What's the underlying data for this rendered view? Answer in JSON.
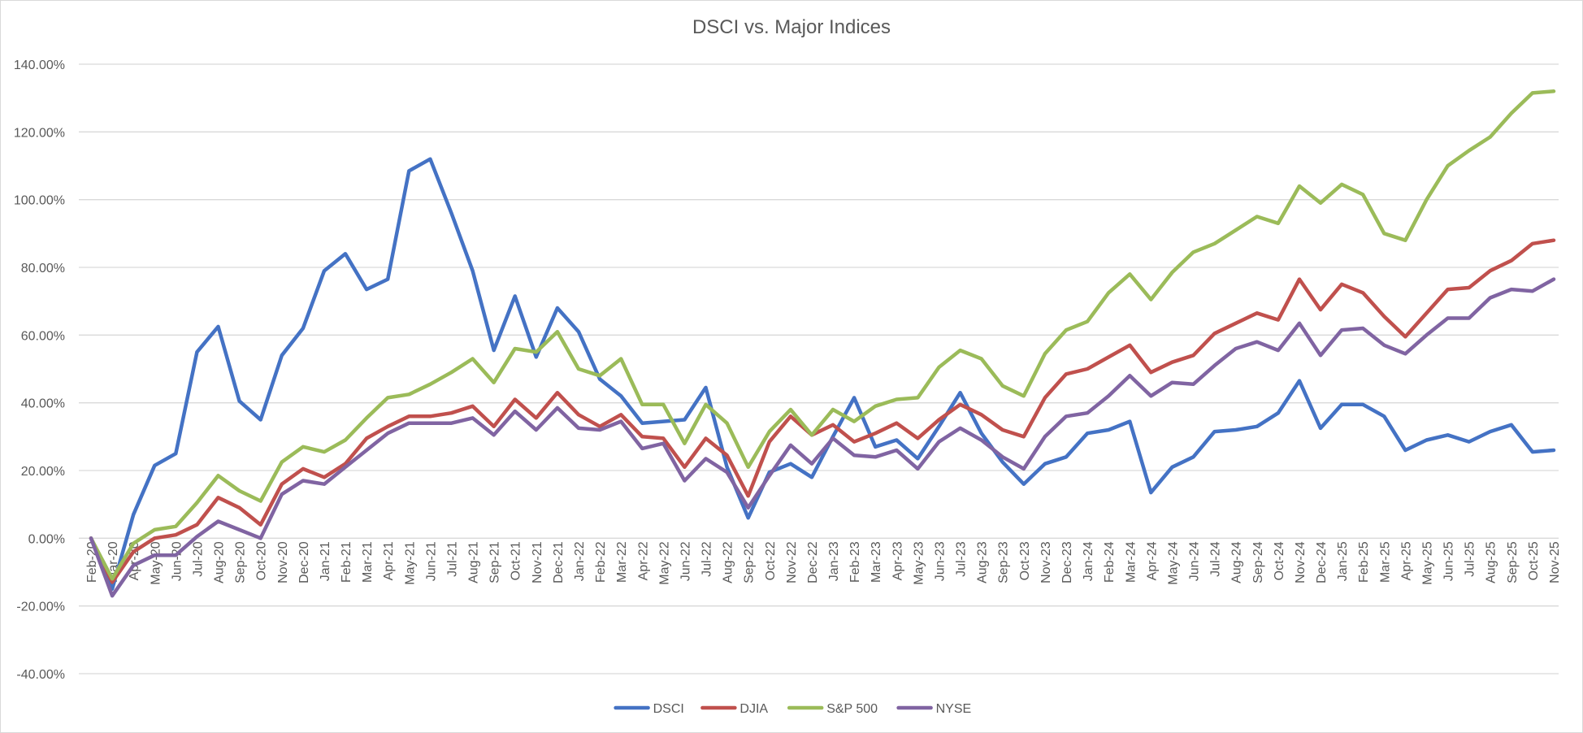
{
  "chart_data": {
    "type": "line",
    "title": "DSCI vs. Major Indices",
    "xlabel": "",
    "ylabel": "",
    "ylim": [
      -40,
      140
    ],
    "ytick_step": 20,
    "ytick_labels": [
      "-40.00%",
      "-20.00%",
      "0.00%",
      "20.00%",
      "40.00%",
      "60.00%",
      "80.00%",
      "100.00%",
      "120.00%",
      "140.00%"
    ],
    "grid": true,
    "legend_position": "bottom",
    "categories": [
      "Feb-20",
      "Mar-20",
      "Apr-20",
      "May-20",
      "Jun-20",
      "Jul-20",
      "Aug-20",
      "Sep-20",
      "Oct-20",
      "Nov-20",
      "Dec-20",
      "Jan-21",
      "Feb-21",
      "Mar-21",
      "Apr-21",
      "May-21",
      "Jun-21",
      "Jul-21",
      "Aug-21",
      "Sep-21",
      "Oct-21",
      "Nov-21",
      "Dec-21",
      "Jan-22",
      "Feb-22",
      "Mar-22",
      "Apr-22",
      "May-22",
      "Jun-22",
      "Jul-22",
      "Aug-22",
      "Sep-22",
      "Oct-22",
      "Nov-22",
      "Dec-22",
      "Jan-23",
      "Feb-23",
      "Mar-23",
      "Apr-23",
      "May-23",
      "Jun-23",
      "Jul-23",
      "Aug-23",
      "Sep-23",
      "Oct-23",
      "Nov-23",
      "Dec-23",
      "Jan-24",
      "Feb-24",
      "Mar-24",
      "Apr-24",
      "May-24",
      "Jun-24",
      "Jul-24",
      "Aug-24",
      "Sep-24",
      "Oct-24",
      "Nov-24",
      "Dec-24",
      "Jan-25",
      "Feb-25",
      "Mar-25",
      "Apr-25",
      "May-25",
      "Jun-25",
      "Jul-25",
      "Aug-25",
      "Sep-25",
      "Oct-25",
      "Nov-25"
    ],
    "series": [
      {
        "name": "DSCI",
        "color": "#4472c4",
        "values": [
          0,
          -15,
          7,
          21.5,
          25,
          55,
          62.5,
          40.5,
          35,
          54,
          62,
          79,
          84,
          73.5,
          76.5,
          108.5,
          112,
          96,
          79,
          55.5,
          71.5,
          53.5,
          68,
          61,
          47,
          42,
          34,
          34.5,
          35,
          44.5,
          21,
          6,
          19.5,
          22,
          18,
          30,
          41.5,
          27,
          29,
          23.5,
          33,
          43,
          31,
          22.5,
          16,
          22,
          24,
          31,
          32,
          34.5,
          13.5,
          21,
          24,
          31.5,
          32,
          33,
          37,
          46.5,
          32.5,
          39.5,
          39.5,
          36,
          26,
          29,
          30.5,
          28.5,
          31.5,
          33.5,
          25.5,
          26
        ]
      },
      {
        "name": "DJIA",
        "color": "#c0504d",
        "values": [
          0,
          -13,
          -4,
          0,
          1,
          4,
          12,
          9,
          4,
          16,
          20.5,
          18,
          22,
          29.5,
          33,
          36,
          36,
          37,
          39,
          33,
          41,
          35.5,
          43,
          36.5,
          33,
          36.5,
          30,
          29.5,
          21,
          29.5,
          24.5,
          12.5,
          28.5,
          36,
          30.5,
          33.5,
          28.5,
          31,
          34,
          29.5,
          35,
          39.5,
          36.5,
          32,
          30,
          41.5,
          48.5,
          50,
          53.5,
          57,
          49,
          52,
          54,
          60.5,
          63.5,
          66.5,
          64.5,
          76.5,
          67.5,
          75,
          72.5,
          65.5,
          59.5,
          66.5,
          73.5,
          74,
          79,
          82,
          87,
          88
        ]
      },
      {
        "name": "S&P 500",
        "color": "#9bbb59",
        "values": [
          0,
          -12,
          -1.5,
          2.5,
          3.5,
          10.5,
          18.5,
          14,
          11,
          22.5,
          27,
          25.5,
          29,
          35.5,
          41.5,
          42.5,
          45.5,
          49,
          53,
          46,
          56,
          55,
          61,
          50,
          48,
          53,
          39.5,
          39.5,
          28,
          39.5,
          34,
          21,
          31.5,
          38,
          30.5,
          38,
          34.5,
          39,
          41,
          41.5,
          50.5,
          55.5,
          53,
          45,
          42,
          54.5,
          61.5,
          64,
          72.5,
          78,
          70.5,
          78.5,
          84.5,
          87,
          91,
          95,
          93,
          104,
          99,
          104.5,
          101.5,
          90,
          88,
          100,
          110,
          114.5,
          118.5,
          125.5,
          131.5,
          132
        ]
      },
      {
        "name": "NYSE",
        "color": "#8064a2",
        "values": [
          0,
          -17,
          -8,
          -5,
          -5,
          0.5,
          5,
          2.5,
          0,
          13,
          17,
          16,
          21,
          26,
          31,
          34,
          34,
          34,
          35.5,
          30.5,
          37.5,
          32,
          38.5,
          32.5,
          32,
          34.5,
          26.5,
          28,
          17,
          23.5,
          19.5,
          9,
          18.5,
          27.5,
          22,
          29.5,
          24.5,
          24,
          26,
          20.5,
          28.5,
          32.5,
          29,
          24,
          20.5,
          30,
          36,
          37,
          42,
          48,
          42,
          46,
          45.5,
          51,
          56,
          58,
          55.5,
          63.5,
          54,
          61.5,
          62,
          57,
          54.5,
          60,
          65,
          65,
          71,
          73.5,
          73,
          76.5
        ]
      }
    ]
  }
}
